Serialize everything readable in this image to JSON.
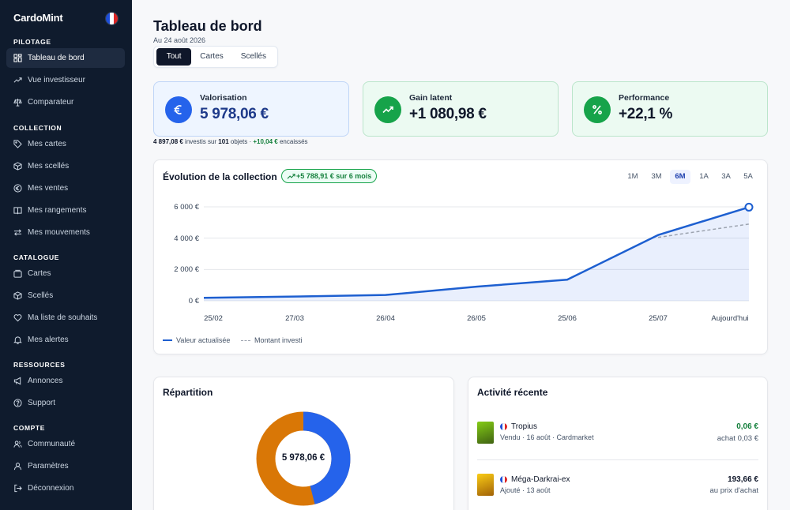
{
  "app": {
    "name": "CardoMint"
  },
  "sidebar": {
    "sections": [
      {
        "label": "PILOTAGE",
        "items": [
          {
            "label": "Tableau de bord",
            "icon": "dashboard-icon",
            "active": true
          },
          {
            "label": "Vue investisseur",
            "icon": "trend-up-icon"
          },
          {
            "label": "Comparateur",
            "icon": "scale-icon"
          }
        ]
      },
      {
        "label": "COLLECTION",
        "items": [
          {
            "label": "Mes cartes",
            "icon": "tag-icon"
          },
          {
            "label": "Mes scellés",
            "icon": "box-icon"
          },
          {
            "label": "Mes ventes",
            "icon": "euro-circle-icon"
          },
          {
            "label": "Mes rangements",
            "icon": "book-icon"
          },
          {
            "label": "Mes mouvements",
            "icon": "arrows-icon"
          }
        ]
      },
      {
        "label": "CATALOGUE",
        "items": [
          {
            "label": "Cartes",
            "icon": "cards-icon"
          },
          {
            "label": "Scellés",
            "icon": "box-icon"
          },
          {
            "label": "Ma liste de souhaits",
            "icon": "heart-icon"
          },
          {
            "label": "Mes alertes",
            "icon": "bell-icon"
          }
        ]
      },
      {
        "label": "RESSOURCES",
        "items": [
          {
            "label": "Annonces",
            "icon": "megaphone-icon"
          },
          {
            "label": "Support",
            "icon": "help-icon"
          }
        ]
      },
      {
        "label": "COMPTE",
        "items": [
          {
            "label": "Communauté",
            "icon": "users-icon"
          },
          {
            "label": "Paramètres",
            "icon": "user-icon"
          },
          {
            "label": "Déconnexion",
            "icon": "logout-icon"
          }
        ]
      }
    ]
  },
  "header": {
    "title": "Tableau de bord",
    "date": "Au 24 août 2026"
  },
  "filters": {
    "tabs": [
      "Tout",
      "Cartes",
      "Scellés"
    ],
    "active": "Tout"
  },
  "kpis": [
    {
      "label": "Valorisation",
      "value": "5 978,06 €",
      "icon": "euro-icon",
      "color": "#2563eb"
    },
    {
      "label": "Gain latent",
      "value": "+1 080,98 €",
      "icon": "trend-up-icon",
      "color": "#16a34a"
    },
    {
      "label": "Performance",
      "value": "+22,1 %",
      "icon": "percent-icon",
      "color": "#16a34a"
    }
  ],
  "summary": {
    "invested": "4 897,08 €",
    "invested_text": "investis sur",
    "objects": "101",
    "objects_text": "objets ·",
    "cashed": "+10,04 €",
    "cashed_text": "encaissés"
  },
  "evolution": {
    "title": "Évolution de la collection",
    "badge": "+5 788,91 € sur 6 mois",
    "ranges": [
      "1M",
      "3M",
      "6M",
      "1A",
      "3A",
      "5A"
    ],
    "active_range": "6M",
    "legend": {
      "value": "Valeur actualisée",
      "invested": "Montant investi"
    }
  },
  "chart_data": {
    "type": "line",
    "x": [
      "25/02",
      "27/03",
      "26/04",
      "26/05",
      "25/06",
      "25/07",
      "Aujourd'hui"
    ],
    "y_ticks": [
      "0 €",
      "2 000 €",
      "4 000 €",
      "6 000 €"
    ],
    "ylim": [
      0,
      6000
    ],
    "series": [
      {
        "name": "Valeur actualisée",
        "color": "#1d5fd0",
        "values": [
          190,
          270,
          370,
          900,
          1350,
          4200,
          5978.06
        ]
      },
      {
        "name": "Montant investi",
        "color": "#9ca3af",
        "dashed": true,
        "values": [
          null,
          null,
          null,
          null,
          null,
          4050,
          4897.08
        ]
      }
    ]
  },
  "repartition": {
    "title": "Répartition",
    "total": "5 978,06 €",
    "slices": [
      {
        "value": 0.46,
        "color": "#2563eb"
      },
      {
        "value": 0.54,
        "color": "#d97706"
      }
    ]
  },
  "activity": {
    "title": "Activité récente",
    "items": [
      {
        "name": "Tropius",
        "meta": "Vendu · 16 août · Cardmarket",
        "amount": "0,06 €",
        "amount_color": "#15803d",
        "note": "achat 0,03 €",
        "thumb_color": "#65a30d"
      },
      {
        "name": "Méga-Darkrai-ex",
        "meta": "Ajouté · 13 août",
        "amount": "193,66 €",
        "amount_color": "#0f172a",
        "note": "au prix d'achat",
        "thumb_color": "#eab308"
      }
    ]
  }
}
